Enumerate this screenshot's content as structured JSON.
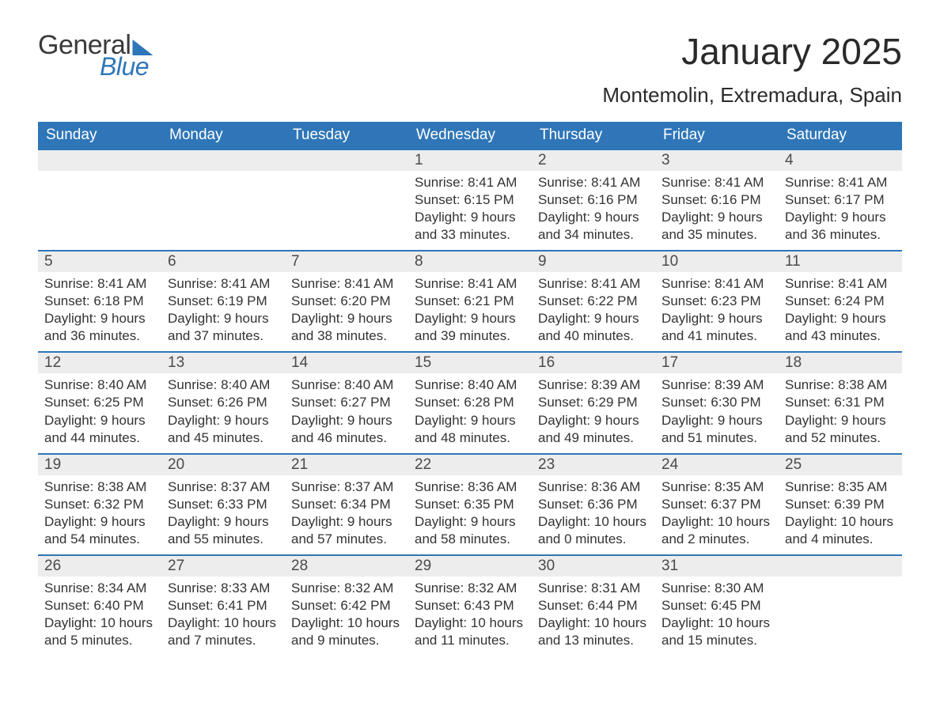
{
  "brand": {
    "word1": "General",
    "word2": "Blue",
    "accent_color": "#2f76b8",
    "text_color": "#3a3a3a"
  },
  "title": "January 2025",
  "location": "Montemolin, Extremadura, Spain",
  "colors": {
    "header_bg": "#2f76b8",
    "header_text": "#ffffff",
    "daynum_bg": "#ededed",
    "body_text": "#333333",
    "row_border": "#2f76b8",
    "page_bg": "#ffffff"
  },
  "typography": {
    "title_fontsize": 46,
    "location_fontsize": 26,
    "header_fontsize": 19,
    "daynum_fontsize": 19,
    "body_fontsize": 17
  },
  "weekdays": [
    "Sunday",
    "Monday",
    "Tuesday",
    "Wednesday",
    "Thursday",
    "Friday",
    "Saturday"
  ],
  "layout": {
    "rows": 5,
    "cols": 7
  },
  "weeks": [
    [
      null,
      null,
      null,
      {
        "day": "1",
        "sunrise": "Sunrise: 8:41 AM",
        "sunset": "Sunset: 6:15 PM",
        "daylight": "Daylight: 9 hours and 33 minutes."
      },
      {
        "day": "2",
        "sunrise": "Sunrise: 8:41 AM",
        "sunset": "Sunset: 6:16 PM",
        "daylight": "Daylight: 9 hours and 34 minutes."
      },
      {
        "day": "3",
        "sunrise": "Sunrise: 8:41 AM",
        "sunset": "Sunset: 6:16 PM",
        "daylight": "Daylight: 9 hours and 35 minutes."
      },
      {
        "day": "4",
        "sunrise": "Sunrise: 8:41 AM",
        "sunset": "Sunset: 6:17 PM",
        "daylight": "Daylight: 9 hours and 36 minutes."
      }
    ],
    [
      {
        "day": "5",
        "sunrise": "Sunrise: 8:41 AM",
        "sunset": "Sunset: 6:18 PM",
        "daylight": "Daylight: 9 hours and 36 minutes."
      },
      {
        "day": "6",
        "sunrise": "Sunrise: 8:41 AM",
        "sunset": "Sunset: 6:19 PM",
        "daylight": "Daylight: 9 hours and 37 minutes."
      },
      {
        "day": "7",
        "sunrise": "Sunrise: 8:41 AM",
        "sunset": "Sunset: 6:20 PM",
        "daylight": "Daylight: 9 hours and 38 minutes."
      },
      {
        "day": "8",
        "sunrise": "Sunrise: 8:41 AM",
        "sunset": "Sunset: 6:21 PM",
        "daylight": "Daylight: 9 hours and 39 minutes."
      },
      {
        "day": "9",
        "sunrise": "Sunrise: 8:41 AM",
        "sunset": "Sunset: 6:22 PM",
        "daylight": "Daylight: 9 hours and 40 minutes."
      },
      {
        "day": "10",
        "sunrise": "Sunrise: 8:41 AM",
        "sunset": "Sunset: 6:23 PM",
        "daylight": "Daylight: 9 hours and 41 minutes."
      },
      {
        "day": "11",
        "sunrise": "Sunrise: 8:41 AM",
        "sunset": "Sunset: 6:24 PM",
        "daylight": "Daylight: 9 hours and 43 minutes."
      }
    ],
    [
      {
        "day": "12",
        "sunrise": "Sunrise: 8:40 AM",
        "sunset": "Sunset: 6:25 PM",
        "daylight": "Daylight: 9 hours and 44 minutes."
      },
      {
        "day": "13",
        "sunrise": "Sunrise: 8:40 AM",
        "sunset": "Sunset: 6:26 PM",
        "daylight": "Daylight: 9 hours and 45 minutes."
      },
      {
        "day": "14",
        "sunrise": "Sunrise: 8:40 AM",
        "sunset": "Sunset: 6:27 PM",
        "daylight": "Daylight: 9 hours and 46 minutes."
      },
      {
        "day": "15",
        "sunrise": "Sunrise: 8:40 AM",
        "sunset": "Sunset: 6:28 PM",
        "daylight": "Daylight: 9 hours and 48 minutes."
      },
      {
        "day": "16",
        "sunrise": "Sunrise: 8:39 AM",
        "sunset": "Sunset: 6:29 PM",
        "daylight": "Daylight: 9 hours and 49 minutes."
      },
      {
        "day": "17",
        "sunrise": "Sunrise: 8:39 AM",
        "sunset": "Sunset: 6:30 PM",
        "daylight": "Daylight: 9 hours and 51 minutes."
      },
      {
        "day": "18",
        "sunrise": "Sunrise: 8:38 AM",
        "sunset": "Sunset: 6:31 PM",
        "daylight": "Daylight: 9 hours and 52 minutes."
      }
    ],
    [
      {
        "day": "19",
        "sunrise": "Sunrise: 8:38 AM",
        "sunset": "Sunset: 6:32 PM",
        "daylight": "Daylight: 9 hours and 54 minutes."
      },
      {
        "day": "20",
        "sunrise": "Sunrise: 8:37 AM",
        "sunset": "Sunset: 6:33 PM",
        "daylight": "Daylight: 9 hours and 55 minutes."
      },
      {
        "day": "21",
        "sunrise": "Sunrise: 8:37 AM",
        "sunset": "Sunset: 6:34 PM",
        "daylight": "Daylight: 9 hours and 57 minutes."
      },
      {
        "day": "22",
        "sunrise": "Sunrise: 8:36 AM",
        "sunset": "Sunset: 6:35 PM",
        "daylight": "Daylight: 9 hours and 58 minutes."
      },
      {
        "day": "23",
        "sunrise": "Sunrise: 8:36 AM",
        "sunset": "Sunset: 6:36 PM",
        "daylight": "Daylight: 10 hours and 0 minutes."
      },
      {
        "day": "24",
        "sunrise": "Sunrise: 8:35 AM",
        "sunset": "Sunset: 6:37 PM",
        "daylight": "Daylight: 10 hours and 2 minutes."
      },
      {
        "day": "25",
        "sunrise": "Sunrise: 8:35 AM",
        "sunset": "Sunset: 6:39 PM",
        "daylight": "Daylight: 10 hours and 4 minutes."
      }
    ],
    [
      {
        "day": "26",
        "sunrise": "Sunrise: 8:34 AM",
        "sunset": "Sunset: 6:40 PM",
        "daylight": "Daylight: 10 hours and 5 minutes."
      },
      {
        "day": "27",
        "sunrise": "Sunrise: 8:33 AM",
        "sunset": "Sunset: 6:41 PM",
        "daylight": "Daylight: 10 hours and 7 minutes."
      },
      {
        "day": "28",
        "sunrise": "Sunrise: 8:32 AM",
        "sunset": "Sunset: 6:42 PM",
        "daylight": "Daylight: 10 hours and 9 minutes."
      },
      {
        "day": "29",
        "sunrise": "Sunrise: 8:32 AM",
        "sunset": "Sunset: 6:43 PM",
        "daylight": "Daylight: 10 hours and 11 minutes."
      },
      {
        "day": "30",
        "sunrise": "Sunrise: 8:31 AM",
        "sunset": "Sunset: 6:44 PM",
        "daylight": "Daylight: 10 hours and 13 minutes."
      },
      {
        "day": "31",
        "sunrise": "Sunrise: 8:30 AM",
        "sunset": "Sunset: 6:45 PM",
        "daylight": "Daylight: 10 hours and 15 minutes."
      },
      null
    ]
  ]
}
